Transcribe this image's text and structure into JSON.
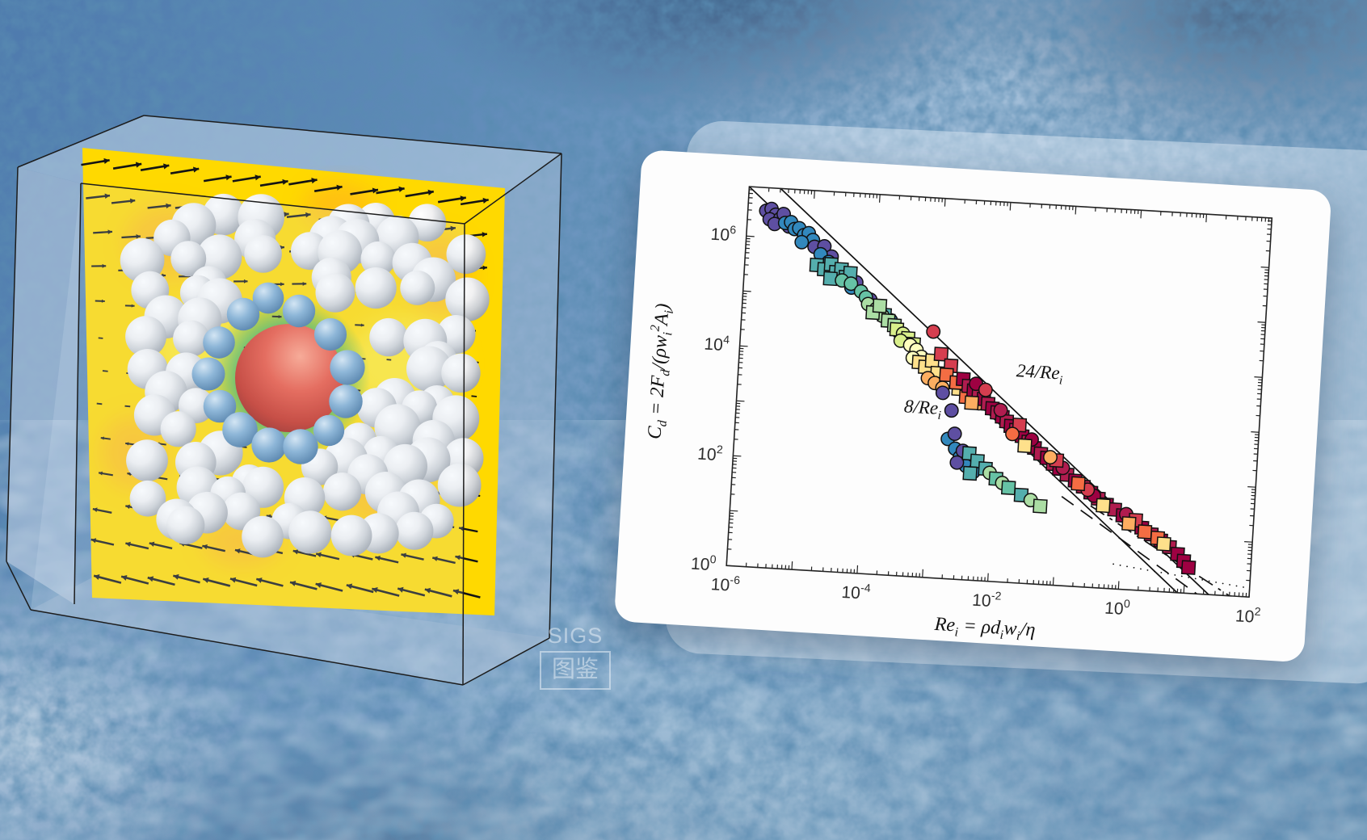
{
  "watermark": {
    "line1": "SIGS",
    "line2": "图鉴"
  },
  "chart_data": {
    "type": "scatter",
    "title": "",
    "xlabel_text": "Re_i = ρ d_i w_i / η",
    "ylabel_text": "C_d = 2 F_d / (ρ w_i^2 A_i)",
    "xlabel_parts": [
      {
        "t": "Re"
      },
      {
        "t": "i",
        "s": "sub"
      },
      {
        "t": " = "
      },
      {
        "t": "ρd"
      },
      {
        "t": "i",
        "s": "sub"
      },
      {
        "t": "w"
      },
      {
        "t": "i",
        "s": "sub"
      },
      {
        "t": "/η"
      }
    ],
    "ylabel_parts": [
      {
        "t": "C"
      },
      {
        "t": "d",
        "s": "sub"
      },
      {
        "t": " = 2"
      },
      {
        "t": "F"
      },
      {
        "t": "d",
        "s": "sub"
      },
      {
        "t": "/("
      },
      {
        "t": "ρw"
      },
      {
        "t": "i",
        "s": "sub"
      },
      {
        "t": "2",
        "s": "sup"
      },
      {
        "t": "A"
      },
      {
        "t": "i",
        "s": "sub"
      },
      {
        "t": ")"
      }
    ],
    "x_log_range": [
      -6,
      2
    ],
    "y_log_range": [
      0,
      6.9
    ],
    "x_tick_exponents": [
      -6,
      -4,
      -2,
      0,
      2
    ],
    "y_tick_exponents": [
      0,
      2,
      4,
      6
    ],
    "grid": false,
    "legend": "none",
    "annotations": [
      {
        "text_base": "24/Re",
        "text_sub": "i",
        "log_x": -1.4,
        "log_y": 3.85
      },
      {
        "text_base": "8/Re",
        "text_sub": "i",
        "log_x": -3.15,
        "log_y": 3.08
      }
    ],
    "reference_lines": [
      {
        "style": "solid",
        "label": "8/Re_i",
        "points_log": [
          [
            -6,
            6.9
          ],
          [
            0.9,
            0
          ]
        ]
      },
      {
        "style": "solid",
        "label": "24/Re_i",
        "points_log": [
          [
            -5.52,
            6.9
          ],
          [
            1.38,
            0
          ]
        ]
      },
      {
        "style": "dashed",
        "label": "",
        "points_log": [
          [
            -0.95,
            1.62
          ],
          [
            1.2,
            0
          ]
        ]
      },
      {
        "style": "dashdot",
        "label": "",
        "points_log": [
          [
            -0.5,
            1.48
          ],
          [
            1.7,
            0
          ]
        ]
      },
      {
        "style": "dotted",
        "label": "",
        "points_log": [
          [
            -0.1,
            0.45
          ],
          [
            2,
            0.16
          ]
        ]
      }
    ],
    "palette": [
      "#5e4fa2",
      "#3288bd",
      "#54aead",
      "#66c2a5",
      "#abdda4",
      "#d9ef8b",
      "#ffffbf",
      "#fee08b",
      "#fdae61",
      "#f46d43",
      "#d53e4f",
      "#b01c4f",
      "#9e0142"
    ],
    "point_format": [
      "log10_Re",
      "log10_Cd",
      "marker(c=circle,s=square)",
      "palette_index"
    ],
    "points": [
      [
        -5.72,
        6.48,
        "c",
        0
      ],
      [
        -5.64,
        6.52,
        "c",
        0
      ],
      [
        -5.57,
        6.42,
        "c",
        0
      ],
      [
        -5.66,
        6.33,
        "c",
        0
      ],
      [
        -5.5,
        6.35,
        "c",
        0
      ],
      [
        -5.45,
        6.44,
        "c",
        0
      ],
      [
        -5.58,
        6.25,
        "c",
        0
      ],
      [
        -5.36,
        6.22,
        "c",
        0
      ],
      [
        -5.42,
        6.28,
        "c",
        1
      ],
      [
        -5.33,
        6.3,
        "c",
        1
      ],
      [
        -5.27,
        6.18,
        "c",
        1
      ],
      [
        -5.2,
        6.2,
        "c",
        1
      ],
      [
        -5.12,
        6.08,
        "c",
        1
      ],
      [
        -5.05,
        6.12,
        "c",
        1
      ],
      [
        -4.98,
        6.0,
        "c",
        1
      ],
      [
        -5.15,
        5.95,
        "c",
        1
      ],
      [
        -4.95,
        5.88,
        "c",
        0
      ],
      [
        -4.8,
        5.9,
        "c",
        0
      ],
      [
        -4.68,
        5.72,
        "c",
        0
      ],
      [
        -4.28,
        5.28,
        "c",
        0
      ],
      [
        -4.05,
        4.98,
        "c",
        0
      ],
      [
        -4.85,
        5.75,
        "c",
        1
      ],
      [
        -4.72,
        5.62,
        "c",
        1
      ],
      [
        -4.35,
        5.18,
        "c",
        1
      ],
      [
        -3.72,
        4.63,
        "c",
        1
      ],
      [
        -4.9,
        5.55,
        "s",
        2
      ],
      [
        -4.78,
        5.48,
        "s",
        2
      ],
      [
        -4.68,
        5.58,
        "s",
        2
      ],
      [
        -4.6,
        5.44,
        "s",
        2
      ],
      [
        -4.52,
        5.5,
        "s",
        2
      ],
      [
        -4.45,
        5.36,
        "s",
        2
      ],
      [
        -4.68,
        5.32,
        "s",
        2
      ],
      [
        -4.38,
        5.44,
        "s",
        2
      ],
      [
        -3.82,
        4.72,
        "s",
        2
      ],
      [
        -4.5,
        5.3,
        "c",
        3
      ],
      [
        -4.36,
        5.25,
        "c",
        3
      ],
      [
        -4.2,
        5.12,
        "c",
        3
      ],
      [
        -4.12,
        5.02,
        "c",
        3
      ],
      [
        -4.08,
        4.9,
        "c",
        4
      ],
      [
        -3.95,
        4.82,
        "c",
        4
      ],
      [
        -3.85,
        4.7,
        "c",
        4
      ],
      [
        -3.58,
        4.42,
        "c",
        4
      ],
      [
        -4.0,
        4.75,
        "s",
        4
      ],
      [
        -3.9,
        4.88,
        "s",
        4
      ],
      [
        -3.76,
        4.62,
        "s",
        4
      ],
      [
        -3.66,
        4.54,
        "s",
        4
      ],
      [
        -3.62,
        4.47,
        "s",
        5
      ],
      [
        -3.52,
        4.4,
        "c",
        5
      ],
      [
        -3.44,
        4.32,
        "s",
        5
      ],
      [
        -3.55,
        4.27,
        "c",
        5
      ],
      [
        -3.35,
        4.22,
        "s",
        5
      ],
      [
        -3.4,
        4.2,
        "c",
        6
      ],
      [
        -3.3,
        4.12,
        "c",
        6
      ],
      [
        -3.22,
        4.0,
        "c",
        6
      ],
      [
        -3.35,
        3.97,
        "c",
        6
      ],
      [
        -3.12,
        3.9,
        "c",
        6
      ],
      [
        -3.25,
        3.9,
        "s",
        7
      ],
      [
        -3.15,
        3.82,
        "s",
        7
      ],
      [
        -3.05,
        3.94,
        "s",
        7
      ],
      [
        -2.96,
        3.72,
        "s",
        7
      ],
      [
        -2.62,
        3.46,
        "s",
        7
      ],
      [
        -3.06,
        4.47,
        "c",
        10
      ],
      [
        -2.92,
        4.07,
        "s",
        10
      ],
      [
        -2.76,
        3.87,
        "s",
        10
      ],
      [
        -3.1,
        3.62,
        "c",
        8
      ],
      [
        -2.99,
        3.54,
        "c",
        8
      ],
      [
        -2.87,
        3.46,
        "c",
        8
      ],
      [
        -2.3,
        3.22,
        "c",
        8
      ],
      [
        -2.82,
        3.7,
        "s",
        9
      ],
      [
        -2.66,
        3.57,
        "s",
        9
      ],
      [
        -2.5,
        3.32,
        "s",
        9
      ],
      [
        -2.86,
        3.37,
        "c",
        0
      ],
      [
        -2.71,
        3.06,
        "c",
        0
      ],
      [
        -2.56,
        3.64,
        "s",
        12
      ],
      [
        -2.47,
        3.52,
        "s",
        11
      ],
      [
        -2.39,
        3.44,
        "s",
        12
      ],
      [
        -2.31,
        3.37,
        "s",
        11
      ],
      [
        -2.23,
        3.3,
        "s",
        12
      ],
      [
        -2.16,
        3.22,
        "s",
        11
      ],
      [
        -2.09,
        3.14,
        "s",
        12
      ],
      [
        -2.01,
        3.07,
        "s",
        11
      ],
      [
        -1.93,
        3.0,
        "s",
        12
      ],
      [
        -1.86,
        2.92,
        "s",
        11
      ],
      [
        -1.79,
        2.84,
        "s",
        12
      ],
      [
        -1.71,
        2.77,
        "s",
        11
      ],
      [
        -1.61,
        2.67,
        "s",
        12
      ],
      [
        -1.51,
        2.57,
        "s",
        11
      ],
      [
        -1.41,
        2.47,
        "s",
        12
      ],
      [
        -1.31,
        2.37,
        "s",
        11
      ],
      [
        -1.21,
        2.3,
        "s",
        12
      ],
      [
        -1.11,
        2.2,
        "s",
        11
      ],
      [
        -1.01,
        2.12,
        "s",
        12
      ],
      [
        -0.89,
        2.02,
        "s",
        11
      ],
      [
        -0.76,
        1.92,
        "s",
        12
      ],
      [
        -0.63,
        1.82,
        "s",
        11
      ],
      [
        -0.51,
        1.72,
        "s",
        12
      ],
      [
        -0.39,
        1.62,
        "s",
        11
      ],
      [
        -0.26,
        1.52,
        "s",
        12
      ],
      [
        -0.13,
        1.44,
        "s",
        11
      ],
      [
        0.0,
        1.34,
        "s",
        12
      ],
      [
        0.15,
        1.24,
        "s",
        11
      ],
      [
        0.3,
        1.14,
        "s",
        12
      ],
      [
        0.45,
        1.03,
        "s",
        11
      ],
      [
        0.6,
        0.93,
        "s",
        12
      ],
      [
        0.74,
        0.82,
        "s",
        11
      ],
      [
        0.87,
        0.7,
        "s",
        12
      ],
      [
        0.97,
        0.58,
        "s",
        12
      ],
      [
        1.05,
        0.47,
        "s",
        12
      ],
      [
        -2.36,
        3.57,
        "c",
        12
      ],
      [
        -1.96,
        3.12,
        "c",
        11
      ],
      [
        -1.46,
        2.62,
        "c",
        12
      ],
      [
        -0.96,
        2.14,
        "c",
        11
      ],
      [
        -0.46,
        1.67,
        "c",
        12
      ],
      [
        0.05,
        1.37,
        "c",
        11
      ],
      [
        -2.21,
        3.47,
        "c",
        10
      ],
      [
        -1.66,
        2.87,
        "s",
        10
      ],
      [
        -1.06,
        2.27,
        "s",
        10
      ],
      [
        -0.56,
        1.77,
        "c",
        10
      ],
      [
        0.2,
        1.27,
        "s",
        10
      ],
      [
        -1.76,
        2.7,
        "c",
        9
      ],
      [
        -0.71,
        1.87,
        "s",
        9
      ],
      [
        0.35,
        1.07,
        "s",
        9
      ],
      [
        0.55,
        0.97,
        "s",
        9
      ],
      [
        -2.41,
        3.22,
        "s",
        8
      ],
      [
        -1.16,
        2.32,
        "c",
        8
      ],
      [
        0.1,
        1.2,
        "s",
        8
      ],
      [
        -1.56,
        2.5,
        "s",
        7
      ],
      [
        -0.31,
        1.5,
        "s",
        7
      ],
      [
        0.65,
        0.87,
        "s",
        7
      ],
      [
        -2.74,
        2.54,
        "c",
        1
      ],
      [
        -2.62,
        2.37,
        "c",
        1
      ],
      [
        -2.54,
        2.22,
        "c",
        1
      ],
      [
        -2.44,
        2.07,
        "c",
        1
      ],
      [
        -2.32,
        1.97,
        "c",
        1
      ],
      [
        -2.64,
        2.64,
        "c",
        0
      ],
      [
        -2.5,
        2.34,
        "c",
        0
      ],
      [
        -2.58,
        2.12,
        "c",
        0
      ],
      [
        -2.4,
        2.3,
        "s",
        2
      ],
      [
        -2.27,
        2.17,
        "s",
        2
      ],
      [
        -2.14,
        2.04,
        "s",
        2
      ],
      [
        -2.37,
        1.94,
        "s",
        2
      ],
      [
        -2.07,
        1.97,
        "c",
        4
      ],
      [
        -1.97,
        1.87,
        "s",
        3
      ],
      [
        -1.87,
        1.8,
        "c",
        4
      ],
      [
        -1.77,
        1.72,
        "s",
        3
      ],
      [
        -1.57,
        1.6,
        "s",
        2
      ],
      [
        -1.42,
        1.52,
        "c",
        4
      ],
      [
        -1.27,
        1.42,
        "s",
        4
      ]
    ],
    "axis_color": "#222222",
    "line_color": "#111111",
    "tick_label_color": "#2d2d2d",
    "annotation_color": "#111111"
  },
  "scene": {
    "box_edge_color": "#1c1c1c",
    "plane_color": "#ffd900",
    "plane_hotspot_color": "#ff9e2a",
    "plane_highlight_color": "#fff34d",
    "wake_green": "#2fae66",
    "wake_teal": "#35b4ad",
    "particle_white": "#e9e9ec",
    "particle_blue": "#6b9fcc",
    "intruder_red": "#d8402e",
    "arrow_color": "#141414"
  }
}
